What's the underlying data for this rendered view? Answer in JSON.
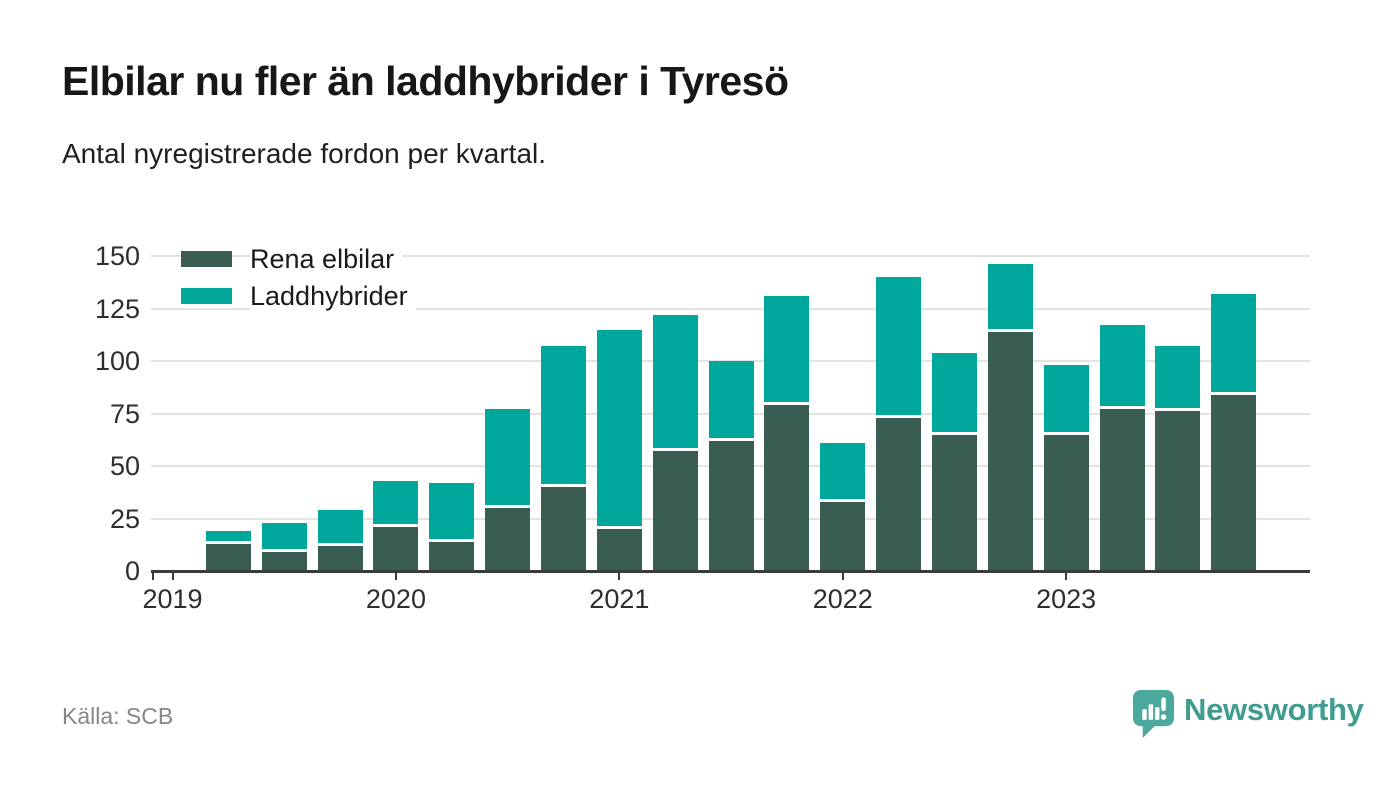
{
  "header": {
    "title": "Elbilar nu fler än laddhybrider i Tyresö",
    "subtitle": "Antal nyregistrerade fordon per kvartal."
  },
  "chart_data": {
    "type": "bar",
    "stacked": true,
    "categories": [
      "2019 Q2",
      "2019 Q3",
      "2019 Q4",
      "2020 Q1",
      "2020 Q2",
      "2020 Q3",
      "2020 Q4",
      "2021 Q1",
      "2021 Q2",
      "2021 Q3",
      "2021 Q4",
      "2022 Q1",
      "2022 Q2",
      "2022 Q3",
      "2022 Q4",
      "2023 Q1",
      "2023 Q2",
      "2023 Q3",
      "2023 Q4"
    ],
    "series": [
      {
        "name": "Rena elbilar",
        "color": "#3a5d53",
        "values": [
          13,
          9,
          12,
          21,
          14,
          30,
          40,
          20,
          57,
          62,
          79,
          33,
          73,
          65,
          114,
          65,
          77,
          76,
          84
        ]
      },
      {
        "name": "Laddhybrider",
        "color": "#00a89b",
        "values": [
          6,
          14,
          17,
          22,
          28,
          47,
          67,
          95,
          65,
          38,
          52,
          28,
          67,
          39,
          32,
          33,
          40,
          31,
          48
        ]
      }
    ],
    "x_tick_labels": [
      "2019",
      "2020",
      "2021",
      "2022",
      "2023"
    ],
    "x_tick_quarter_indices": [
      -1,
      3,
      7,
      11,
      15
    ],
    "y_ticks": [
      0,
      25,
      50,
      75,
      100,
      125,
      150
    ],
    "ylim": [
      0,
      150
    ],
    "grid": "horizontal",
    "legend_position": "top-left"
  },
  "footer": {
    "source": "Källa: SCB",
    "brand": "Newsworthy"
  },
  "colors": {
    "elbilar": "#3a5d53",
    "laddhybrider": "#00a89b",
    "brand_icon": "#4aa89d",
    "brand_text": "#3f9d8f",
    "gridline": "#e3e3e3",
    "axis": "#3b3b3b"
  }
}
